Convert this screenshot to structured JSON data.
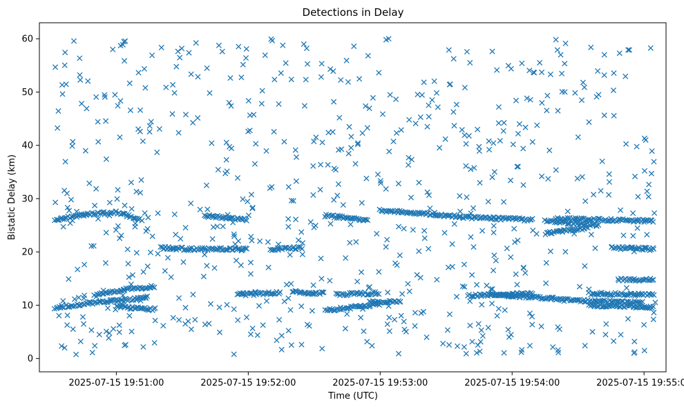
{
  "chart_data": {
    "type": "scatter",
    "title": "Detections in Delay",
    "xlabel": "Time (UTC)",
    "ylabel": "Bistatic Delay (km)",
    "x_ticks": [
      "2025-07-15 19:51:00",
      "2025-07-15 19:52:00",
      "2025-07-15 19:53:00",
      "2025-07-15 19:54:00",
      "2025-07-15 19:55:00"
    ],
    "x_tick_offsets_s": [
      0,
      60,
      120,
      180,
      240
    ],
    "xlim_s": [
      -35,
      250
    ],
    "y_ticks": [
      "0",
      "10",
      "20",
      "30",
      "40",
      "50",
      "60"
    ],
    "ylim": [
      -2.5,
      63
    ],
    "grid": false,
    "marker": "x",
    "color": "#1f77b4",
    "series": [
      {
        "marker": "x",
        "note": "dense tracks plus uniform clutter; values in (seconds from 19:51:00, km)",
        "tracks": [
          {
            "x": [
              -28,
              -15,
              0,
              12
            ],
            "y": [
              26.0,
              27.0,
              27.4,
              26.0
            ]
          },
          {
            "x": [
              -28,
              -10,
              5,
              15
            ],
            "y": [
              9.5,
              10.5,
              11.0,
              11.5
            ]
          },
          {
            "x": [
              -10,
              5,
              18
            ],
            "y": [
              11.8,
              13.0,
              13.5
            ]
          },
          {
            "x": [
              0,
              10,
              18
            ],
            "y": [
              9.8,
              9.4,
              9.2
            ]
          },
          {
            "x": [
              20,
              35,
              60
            ],
            "y": [
              20.8,
              20.5,
              20.6
            ]
          },
          {
            "x": [
              40,
              60
            ],
            "y": [
              26.8,
              26.0
            ]
          },
          {
            "x": [
              55,
              75
            ],
            "y": [
              12.0,
              12.3
            ]
          },
          {
            "x": [
              70,
              85
            ],
            "y": [
              20.5,
              20.8
            ]
          },
          {
            "x": [
              80,
              95
            ],
            "y": [
              12.5,
              12.2
            ]
          },
          {
            "x": [
              95,
              115
            ],
            "y": [
              26.8,
              26.0
            ]
          },
          {
            "x": [
              95,
              120
            ],
            "y": [
              9.0,
              10.2
            ]
          },
          {
            "x": [
              100,
              120
            ],
            "y": [
              12.0,
              12.3
            ]
          },
          {
            "x": [
              115,
              130
            ],
            "y": [
              10.5,
              10.8
            ]
          },
          {
            "x": [
              120,
              160
            ],
            "y": [
              27.8,
              26.5
            ]
          },
          {
            "x": [
              160,
              190
            ],
            "y": [
              26.5,
              26.0
            ]
          },
          {
            "x": [
              160,
              190
            ],
            "y": [
              11.8,
              12.2
            ]
          },
          {
            "x": [
              170,
              200
            ],
            "y": [
              12.0,
              11.2
            ]
          },
          {
            "x": [
              195,
              220
            ],
            "y": [
              25.8,
              25.0
            ]
          },
          {
            "x": [
              195,
              215
            ],
            "y": [
              23.5,
              24.5
            ]
          },
          {
            "x": [
              200,
              240
            ],
            "y": [
              11.0,
              10.5
            ]
          },
          {
            "x": [
              200,
              245
            ],
            "y": [
              26.2,
              25.8
            ]
          },
          {
            "x": [
              215,
              245
            ],
            "y": [
              12.2,
              12.0
            ]
          },
          {
            "x": [
              225,
              245
            ],
            "y": [
              20.8,
              20.5
            ]
          },
          {
            "x": [
              228,
              245
            ],
            "y": [
              14.8,
              14.8
            ]
          },
          {
            "x": [
              215,
              245
            ],
            "y": [
              10.0,
              9.6
            ]
          }
        ],
        "clutter_count": 700,
        "clutter_x_range": [
          -28,
          246
        ],
        "clutter_y_range": [
          0.5,
          60
        ]
      }
    ]
  }
}
